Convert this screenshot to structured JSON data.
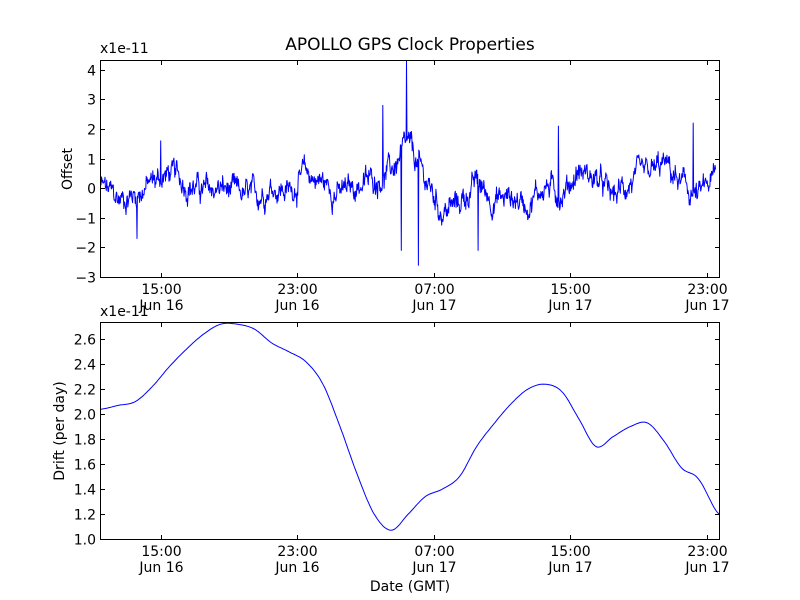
{
  "chart_data": {
    "title": "APOLLO GPS Clock Properties",
    "xlabel": "Date (GMT)",
    "series_color": "#0000ff",
    "x_ticks": [
      {
        "time": "15:00",
        "date": "Jun 16"
      },
      {
        "time": "23:00",
        "date": "Jun 16"
      },
      {
        "time": "07:00",
        "date": "Jun 17"
      },
      {
        "time": "15:00",
        "date": "Jun 17"
      },
      {
        "time": "23:00",
        "date": "Jun 17"
      }
    ],
    "x_tick_hours": [
      15,
      23,
      31,
      39,
      47
    ],
    "xlim_hours": [
      11.5,
      47.7
    ],
    "panels": [
      {
        "type": "line",
        "ylabel": "Offset",
        "scale_label": "x1e-11",
        "ylim": [
          -3,
          4.3
        ],
        "y_ticks": [
          -3,
          -2,
          -1,
          0,
          1,
          2,
          3,
          4
        ],
        "y_tick_labels": [
          "−3",
          "−2",
          "−1",
          "0",
          "1",
          "2",
          "3",
          "4"
        ],
        "x": [
          11.5,
          12.5,
          13.5,
          14.5,
          15.5,
          16.5,
          17.5,
          18.5,
          19.5,
          20.5,
          21.5,
          22.5,
          23.5,
          24.5,
          25.5,
          26.5,
          27.5,
          28.5,
          29.5,
          30.5,
          31.5,
          32.5,
          33.5,
          34.5,
          35.5,
          36.5,
          37.5,
          38.5,
          39.5,
          40.5,
          41.5,
          42.5,
          43.5,
          44.5,
          45.5,
          46.5,
          47.5
        ],
        "values": [
          0.1,
          -0.4,
          -0.2,
          0.2,
          0.5,
          0.2,
          -0.1,
          0.0,
          -0.2,
          -0.3,
          0.1,
          -0.1,
          0.5,
          0.2,
          -0.2,
          0.1,
          0.3,
          0.6,
          1.4,
          0.3,
          -0.8,
          -0.5,
          0.2,
          -0.4,
          -0.3,
          -0.5,
          0.1,
          -0.2,
          0.6,
          0.3,
          -0.3,
          0.2,
          0.4,
          0.8,
          0.1,
          -0.3,
          0.4
        ],
        "spikes": [
          {
            "x": 28.0,
            "y": 2.8
          },
          {
            "x": 29.4,
            "y": 4.3
          },
          {
            "x": 30.1,
            "y": -2.6
          },
          {
            "x": 29.1,
            "y": -2.1
          },
          {
            "x": 38.3,
            "y": 2.1
          },
          {
            "x": 46.2,
            "y": 2.2
          },
          {
            "x": 15.0,
            "y": 1.6
          },
          {
            "x": 13.6,
            "y": -1.7
          },
          {
            "x": 33.6,
            "y": -2.1
          }
        ],
        "noise_amplitude": 0.45
      },
      {
        "type": "line",
        "ylabel": "Drift (per day)",
        "scale_label": "x1e-11",
        "ylim": [
          1.0,
          2.73
        ],
        "y_ticks": [
          1.0,
          1.2,
          1.4,
          1.6,
          1.8,
          2.0,
          2.2,
          2.4,
          2.6
        ],
        "y_tick_labels": [
          "1.0",
          "1.2",
          "1.4",
          "1.6",
          "1.8",
          "2.0",
          "2.2",
          "2.4",
          "2.6"
        ],
        "x": [
          11.5,
          12.5,
          13.5,
          14.5,
          15.5,
          16.5,
          17.5,
          18.5,
          19.5,
          20.5,
          21.5,
          22.5,
          23.5,
          24.5,
          25.5,
          26.5,
          27.5,
          28.5,
          29.5,
          30.5,
          31.5,
          32.5,
          33.5,
          34.5,
          35.5,
          36.5,
          37.5,
          38.5,
          39.5,
          40.5,
          41.5,
          42.5,
          43.5,
          44.5,
          45.5,
          46.5,
          47.7
        ],
        "values": [
          2.04,
          2.07,
          2.1,
          2.22,
          2.38,
          2.52,
          2.64,
          2.72,
          2.72,
          2.68,
          2.57,
          2.5,
          2.42,
          2.24,
          1.9,
          1.52,
          1.2,
          1.07,
          1.2,
          1.34,
          1.4,
          1.5,
          1.74,
          1.92,
          2.08,
          2.2,
          2.24,
          2.18,
          1.96,
          1.74,
          1.82,
          1.9,
          1.93,
          1.78,
          1.57,
          1.48,
          1.2
        ]
      }
    ]
  }
}
